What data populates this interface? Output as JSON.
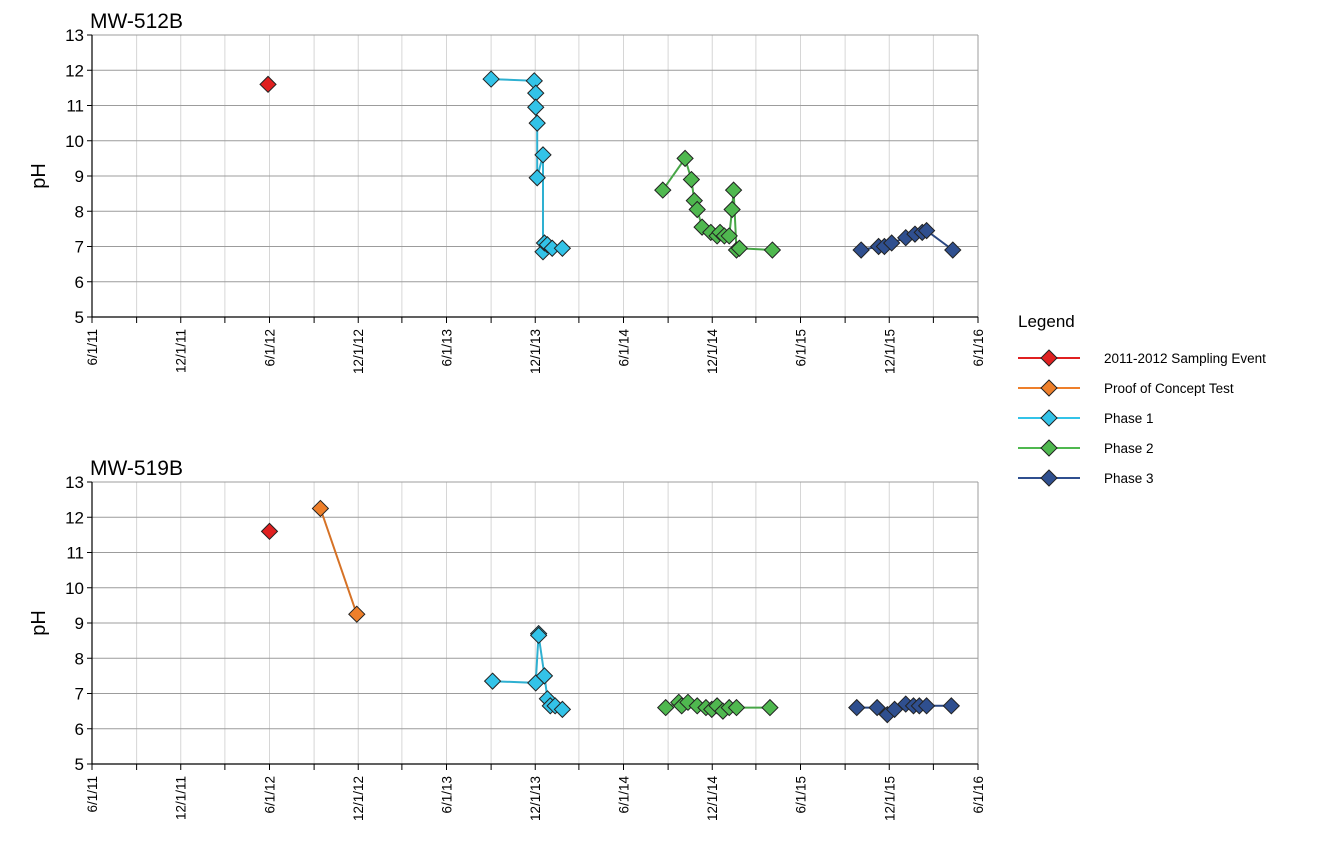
{
  "legend": {
    "title": "Legend",
    "items": [
      {
        "name": "2011-2012 Sampling Event",
        "color": "#e02020"
      },
      {
        "name": "Proof of Concept Test",
        "color": "#ee7f2a"
      },
      {
        "name": "Phase 1",
        "color": "#33c3e8"
      },
      {
        "name": "Phase 2",
        "color": "#4fb84f"
      },
      {
        "name": "Phase 3",
        "color": "#2f4f8f"
      }
    ]
  },
  "chart_data": [
    {
      "type": "line",
      "title": "MW-512B",
      "ylabel": "pH",
      "ylim": [
        5,
        13
      ],
      "yticks": [
        5,
        6,
        7,
        8,
        9,
        10,
        11,
        12,
        13
      ],
      "xlim": [
        "2011-06-01",
        "2016-06-01"
      ],
      "xticks": [
        "6/1/11",
        "12/1/11",
        "6/1/12",
        "12/1/12",
        "6/1/13",
        "12/1/13",
        "6/1/14",
        "12/1/14",
        "6/1/15",
        "12/1/15",
        "6/1/16"
      ],
      "grid": true,
      "series": [
        {
          "name": "2011-2012 Sampling Event",
          "points": [
            [
              "2012-05-29",
              11.6
            ]
          ]
        },
        {
          "name": "Phase 1",
          "points": [
            [
              "2013-09-01",
              11.75
            ],
            [
              "2013-11-29",
              11.7
            ],
            [
              "2013-12-02",
              11.35
            ],
            [
              "2013-12-02",
              10.95
            ],
            [
              "2013-12-05",
              10.5
            ],
            [
              "2013-12-05",
              8.95
            ],
            [
              "2013-12-17",
              9.6
            ],
            [
              "2013-12-17",
              6.85
            ],
            [
              "2013-12-20",
              7.1
            ],
            [
              "2013-12-26",
              7.05
            ],
            [
              "2014-01-05",
              6.95
            ],
            [
              "2014-01-26",
              6.95
            ]
          ]
        },
        {
          "name": "Phase 2",
          "points": [
            [
              "2014-08-21",
              8.6
            ],
            [
              "2014-10-06",
              9.5
            ],
            [
              "2014-10-19",
              8.9
            ],
            [
              "2014-10-25",
              8.3
            ],
            [
              "2014-10-31",
              8.05
            ],
            [
              "2014-11-10",
              7.55
            ],
            [
              "2014-11-28",
              7.4
            ],
            [
              "2014-12-11",
              7.3
            ],
            [
              "2014-12-17",
              7.4
            ],
            [
              "2014-12-26",
              7.3
            ],
            [
              "2015-01-05",
              7.3
            ],
            [
              "2015-01-11",
              8.05
            ],
            [
              "2015-01-14",
              8.6
            ],
            [
              "2015-01-20",
              6.9
            ],
            [
              "2015-01-26",
              6.95
            ],
            [
              "2015-04-04",
              6.9
            ]
          ]
        },
        {
          "name": "Phase 3",
          "points": [
            [
              "2015-10-04",
              6.9
            ],
            [
              "2015-11-09",
              7.0
            ],
            [
              "2015-11-21",
              7.0
            ],
            [
              "2015-12-06",
              7.1
            ],
            [
              "2016-01-04",
              7.25
            ],
            [
              "2016-01-23",
              7.35
            ],
            [
              "2016-02-07",
              7.4
            ],
            [
              "2016-02-16",
              7.45
            ],
            [
              "2016-04-10",
              6.9
            ]
          ]
        }
      ]
    },
    {
      "type": "line",
      "title": "MW-519B",
      "ylabel": "pH",
      "ylim": [
        5,
        13
      ],
      "yticks": [
        5,
        6,
        7,
        8,
        9,
        10,
        11,
        12,
        13
      ],
      "xlim": [
        "2011-06-01",
        "2016-06-01"
      ],
      "xticks": [
        "6/1/11",
        "12/1/11",
        "6/1/12",
        "12/1/12",
        "6/1/13",
        "12/1/13",
        "6/1/14",
        "12/1/14",
        "6/1/15",
        "12/1/15",
        "6/1/16"
      ],
      "grid": true,
      "series": [
        {
          "name": "2011-2012 Sampling Event",
          "points": [
            [
              "2012-06-01",
              11.6
            ]
          ]
        },
        {
          "name": "Proof of Concept Test",
          "points": [
            [
              "2012-09-14",
              12.25
            ],
            [
              "2012-11-28",
              9.25
            ]
          ]
        },
        {
          "name": "Phase 1",
          "points": [
            [
              "2013-09-04",
              7.35
            ],
            [
              "2013-12-02",
              7.3
            ],
            [
              "2013-12-08",
              8.7
            ],
            [
              "2013-12-08",
              8.65
            ],
            [
              "2013-12-20",
              7.5
            ],
            [
              "2013-12-26",
              6.85
            ],
            [
              "2014-01-01",
              6.65
            ],
            [
              "2014-01-11",
              6.65
            ],
            [
              "2014-01-26",
              6.55
            ]
          ]
        },
        {
          "name": "Phase 2",
          "points": [
            [
              "2014-08-27",
              6.6
            ],
            [
              "2014-09-23",
              6.75
            ],
            [
              "2014-09-29",
              6.65
            ],
            [
              "2014-10-12",
              6.75
            ],
            [
              "2014-10-31",
              6.65
            ],
            [
              "2014-11-18",
              6.6
            ],
            [
              "2014-11-30",
              6.55
            ],
            [
              "2014-12-11",
              6.65
            ],
            [
              "2014-12-23",
              6.5
            ],
            [
              "2015-01-05",
              6.6
            ],
            [
              "2015-01-20",
              6.6
            ],
            [
              "2015-03-30",
              6.6
            ]
          ]
        },
        {
          "name": "Phase 3",
          "points": [
            [
              "2015-09-25",
              6.6
            ],
            [
              "2015-11-06",
              6.6
            ],
            [
              "2015-11-27",
              6.4
            ],
            [
              "2015-12-12",
              6.55
            ],
            [
              "2016-01-04",
              6.7
            ],
            [
              "2016-01-20",
              6.65
            ],
            [
              "2016-02-01",
              6.65
            ],
            [
              "2016-02-16",
              6.65
            ],
            [
              "2016-04-07",
              6.65
            ]
          ]
        }
      ]
    }
  ]
}
